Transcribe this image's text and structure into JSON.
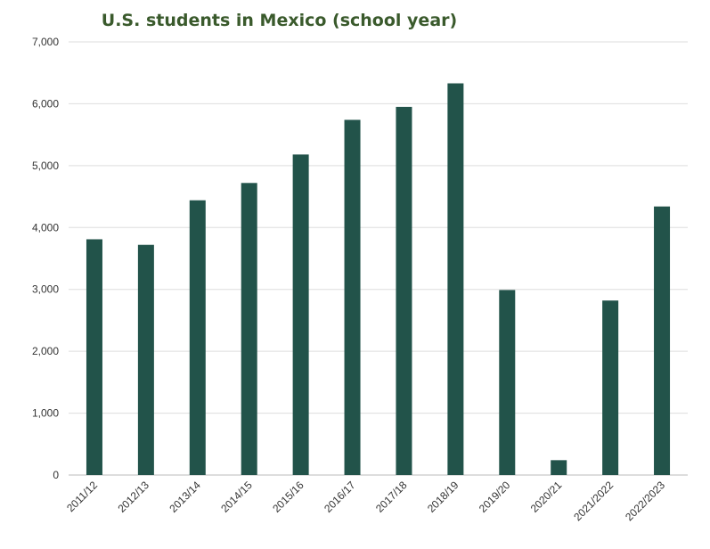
{
  "chart_data": {
    "type": "bar",
    "title": "U.S. students in Mexico (school year)",
    "xlabel": "",
    "ylabel": "",
    "categories": [
      "2011/12",
      "2012/13",
      "2013/14",
      "2014/15",
      "2015/16",
      "2016/17",
      "2017/18",
      "2018/19",
      "2019/20",
      "2020/21",
      "2021/2022",
      "2022/2023"
    ],
    "values": [
      3810,
      3720,
      4440,
      4720,
      5180,
      5740,
      5950,
      6330,
      2990,
      240,
      2820,
      4340
    ],
    "ylim": [
      0,
      7000
    ],
    "yticks": [
      0,
      1000,
      2000,
      3000,
      4000,
      5000,
      6000,
      7000
    ],
    "ytick_labels": [
      "0",
      "1,000",
      "2,000",
      "3,000",
      "4,000",
      "5,000",
      "6,000",
      "7,000"
    ],
    "grid": true,
    "legend": "none",
    "colors": {
      "bar": "#22534a",
      "title": "#3a5a2c",
      "grid": "#dddddd",
      "text": "#333333"
    }
  }
}
